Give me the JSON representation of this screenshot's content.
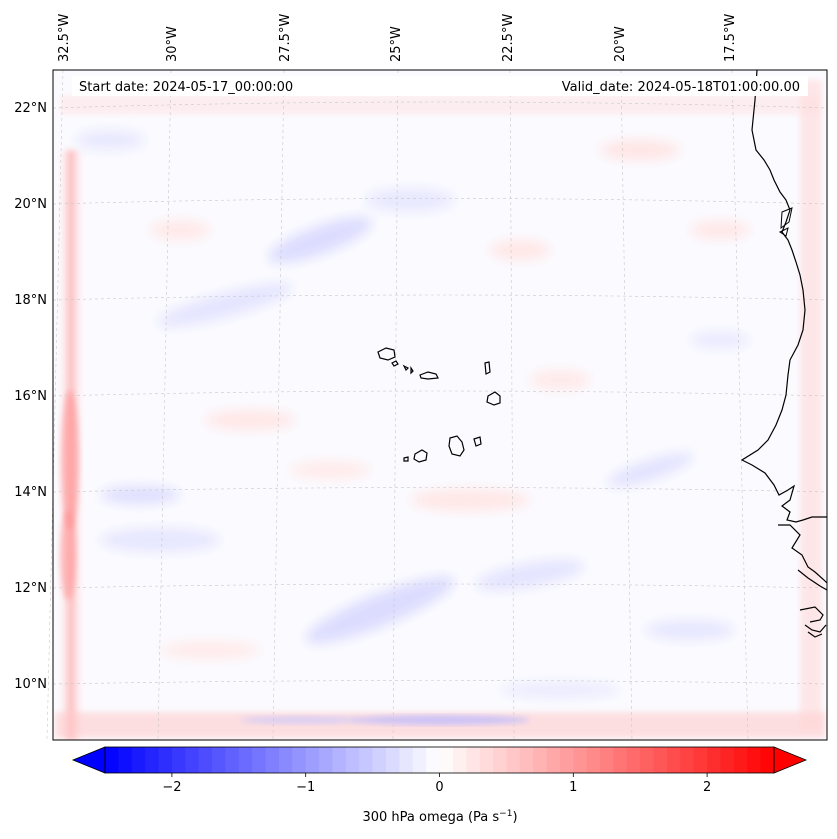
{
  "map": {
    "lon_labels": [
      "32.5°W",
      "30°W",
      "27.5°W",
      "25°W",
      "22.5°W",
      "20°W",
      "17.5°W"
    ],
    "lat_labels": [
      "22°N",
      "20°N",
      "18°N",
      "16°N",
      "14°N",
      "12°N",
      "10°N"
    ],
    "start_date": "Start date: 2024-05-17_00:00:00",
    "valid_date": "Valid_date: 2024-05-18T01:00:00.00",
    "coastline_color": "#000000",
    "gridline_color": "#c8c8c8"
  },
  "colorbar": {
    "label_main": "300 hPa omega (Pa s",
    "label_exp": "−1",
    "label_close": ")",
    "tick_labels": [
      "−2",
      "−1",
      "0",
      "1",
      "2"
    ],
    "tick_values": [
      -2,
      -1,
      0,
      1,
      2
    ],
    "range": [
      -2.5,
      2.5
    ],
    "colormap": "bwr",
    "colors": {
      "negative": "#0000ff",
      "zero": "#ffffff",
      "positive": "#ff0000"
    }
  }
}
